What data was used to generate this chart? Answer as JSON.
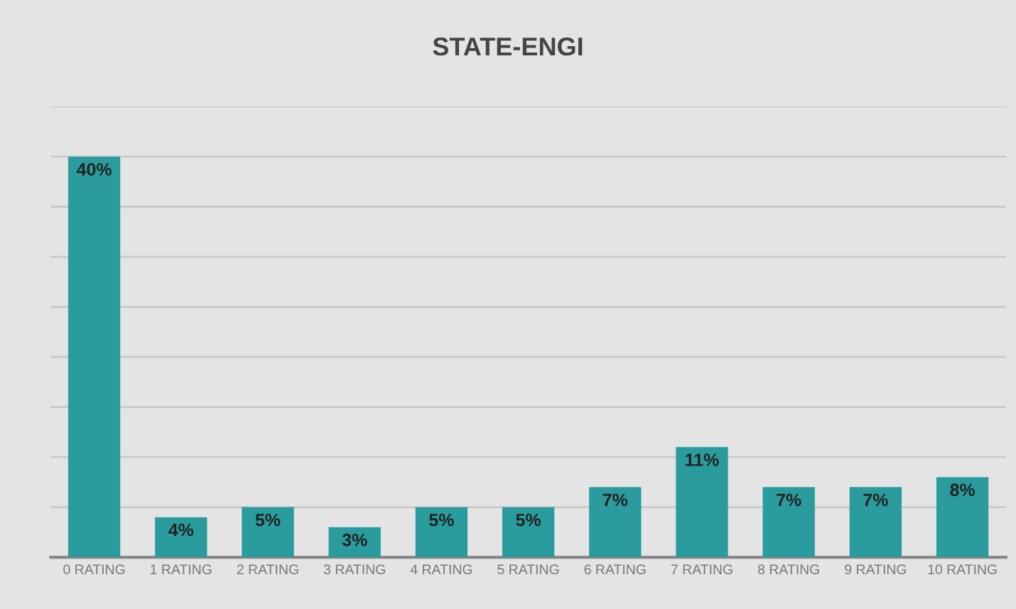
{
  "chart_data": {
    "type": "bar",
    "title": "STATE-ENGI",
    "categories": [
      "0 RATING",
      "1 RATING",
      "2 RATING",
      "3 RATING",
      "4 RATING",
      "5 RATING",
      "6 RATING",
      "7 RATING",
      "8 RATING",
      "9 RATING",
      "10 RATING"
    ],
    "values": [
      40,
      4,
      5,
      3,
      5,
      5,
      7,
      11,
      7,
      7,
      8
    ],
    "value_labels": [
      "40%",
      "4%",
      "5%",
      "3%",
      "5%",
      "5%",
      "7%",
      "11%",
      "7%",
      "7%",
      "8%"
    ],
    "color": "#2a9c9e",
    "ylim": [
      0,
      45
    ],
    "yticks": [
      {
        "value": 0,
        "label": null
      },
      {
        "value": 5,
        "label": null
      },
      {
        "value": 10,
        "label": null
      },
      {
        "value": 15,
        "label": null
      },
      {
        "value": 20,
        "label": null
      },
      {
        "value": 25,
        "label": null
      },
      {
        "value": 30,
        "label": null
      },
      {
        "value": 35,
        "label": null
      },
      {
        "value": 40,
        "label": null
      },
      {
        "value": 45,
        "label": null
      }
    ],
    "grid": "y",
    "tick_labels": "x"
  }
}
